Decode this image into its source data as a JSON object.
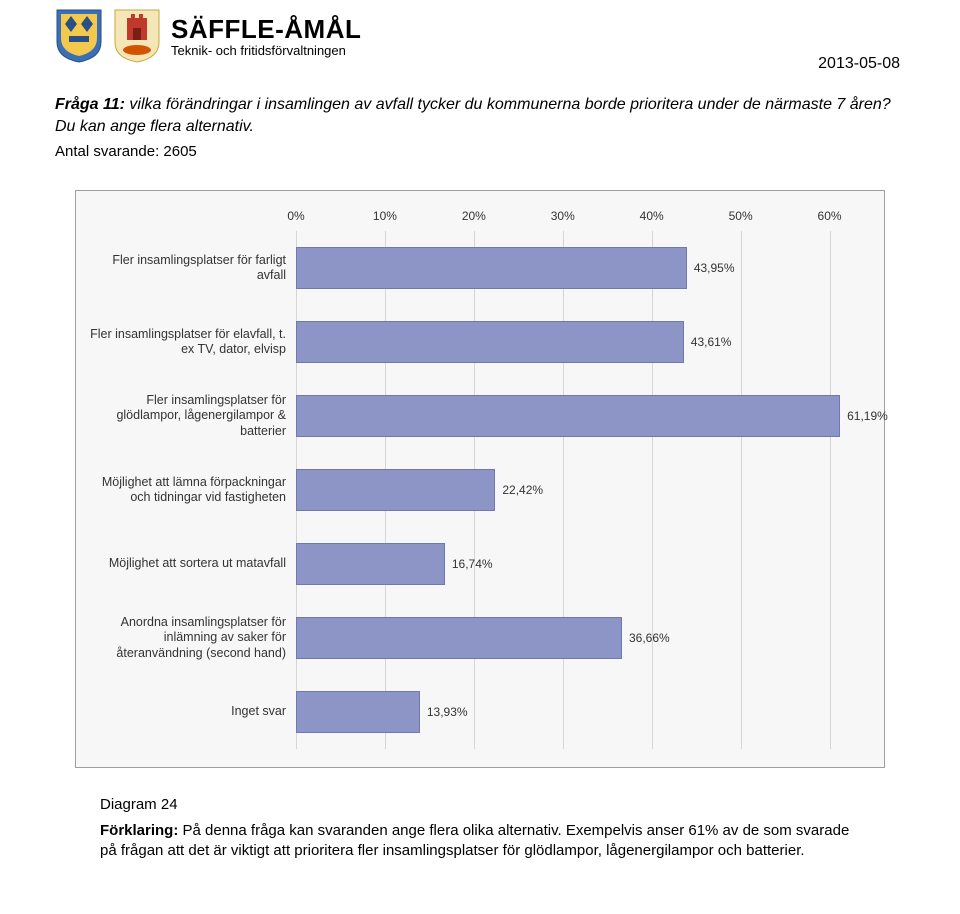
{
  "header": {
    "org_title": "SÄFFLE-ÅMÅL",
    "org_subtitle": "Teknik- och fritidsförvaltningen"
  },
  "date": "2013-05-08",
  "question": {
    "label": "Fråga 11:",
    "text": " vilka förändringar i insamlingen av avfall tycker du kommunerna borde prioritera under de närmaste 7 åren? Du kan ange flera alternativ."
  },
  "respondents_label": "Antal svarande: 2605",
  "chart": {
    "type": "bar-horizontal",
    "x_max": 65,
    "x_ticks": [
      {
        "pos": 0,
        "label": "0%"
      },
      {
        "pos": 10,
        "label": "10%"
      },
      {
        "pos": 20,
        "label": "20%"
      },
      {
        "pos": 30,
        "label": "30%"
      },
      {
        "pos": 40,
        "label": "40%"
      },
      {
        "pos": 50,
        "label": "50%"
      },
      {
        "pos": 60,
        "label": "60%"
      }
    ],
    "bar_color": "#8d95c6",
    "bar_border": "#6f78b0",
    "grid_color": "#d6d6d6",
    "background": "#f7f7f7",
    "categories": [
      {
        "label": "Fler insamlingsplatser för farligt avfall",
        "value": 43.95,
        "value_label": "43,95%"
      },
      {
        "label": "Fler insamlingsplatser för elavfall, t. ex TV, dator, elvisp",
        "value": 43.61,
        "value_label": "43,61%"
      },
      {
        "label": "Fler insamlingsplatser för glödlampor, lågenergilampor & batterier",
        "value": 61.19,
        "value_label": "61,19%"
      },
      {
        "label": "Möjlighet att lämna förpackningar och tidningar vid fastigheten",
        "value": 22.42,
        "value_label": "22,42%"
      },
      {
        "label": "Möjlighet att sortera ut matavfall",
        "value": 16.74,
        "value_label": "16,74%"
      },
      {
        "label": "Anordna insamlingsplatser för inlämning av saker för återanvändning (second hand)",
        "value": 36.66,
        "value_label": "36,66%"
      },
      {
        "label": "Inget svar",
        "value": 13.93,
        "value_label": "13,93%"
      }
    ]
  },
  "caption": "Diagram 24",
  "explanation": {
    "label": "Förklaring:",
    "text": " På denna fråga kan svaranden ange flera olika alternativ. Exempelvis anser 61% av de som svarade på frågan att det är viktigt att prioritera fler insamlingsplatser för glödlampor, lågenergilampor och batterier."
  }
}
